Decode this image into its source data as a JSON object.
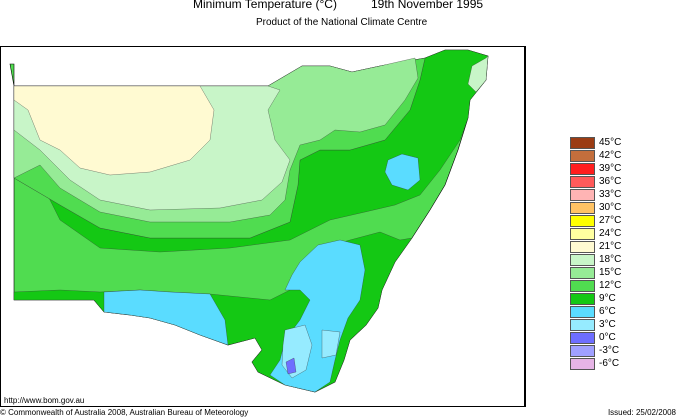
{
  "header": {
    "title": "Minimum Temperature (°C)",
    "date": "19th November 1995",
    "subtitle": "Product of the National Climate Centre"
  },
  "legend": {
    "items": [
      {
        "label": "45°C",
        "color": "#9b3c14"
      },
      {
        "label": "42°C",
        "color": "#c36e3c"
      },
      {
        "label": "39°C",
        "color": "#ff1e1e"
      },
      {
        "label": "36°C",
        "color": "#ff5a5a"
      },
      {
        "label": "33°C",
        "color": "#ffb4b4"
      },
      {
        "label": "30°C",
        "color": "#ffc364"
      },
      {
        "label": "27°C",
        "color": "#ffff00"
      },
      {
        "label": "24°C",
        "color": "#ffffa0"
      },
      {
        "label": "21°C",
        "color": "#fffad2"
      },
      {
        "label": "18°C",
        "color": "#c8f5c8"
      },
      {
        "label": "15°C",
        "color": "#96eb96"
      },
      {
        "label": "12°C",
        "color": "#50dc50"
      },
      {
        "label": "9°C",
        "color": "#14c814"
      },
      {
        "label": "6°C",
        "color": "#5adcff"
      },
      {
        "label": "3°C",
        "color": "#96ebff"
      },
      {
        "label": "0°C",
        "color": "#6e6eff"
      },
      {
        "label": "-3°C",
        "color": "#a0a0ff"
      },
      {
        "label": "-6°C",
        "color": "#e6b4e6"
      }
    ]
  },
  "map_colors": {
    "zone_21_24": "#fffad2",
    "zone_18_21": "#c8f5c8",
    "zone_15_18": "#96eb96",
    "zone_12_15": "#50dc50",
    "zone_9_12": "#14c814",
    "zone_6_9": "#5adcff",
    "zone_3_6": "#96ebff",
    "zone_0_3": "#6e6eff"
  },
  "footer": {
    "url": "http://www.bom.gov.au",
    "copyright": "© Commonwealth of Australia 2008, Australian Bureau of Meteorology",
    "issued": "Issued: 25/02/2008"
  }
}
